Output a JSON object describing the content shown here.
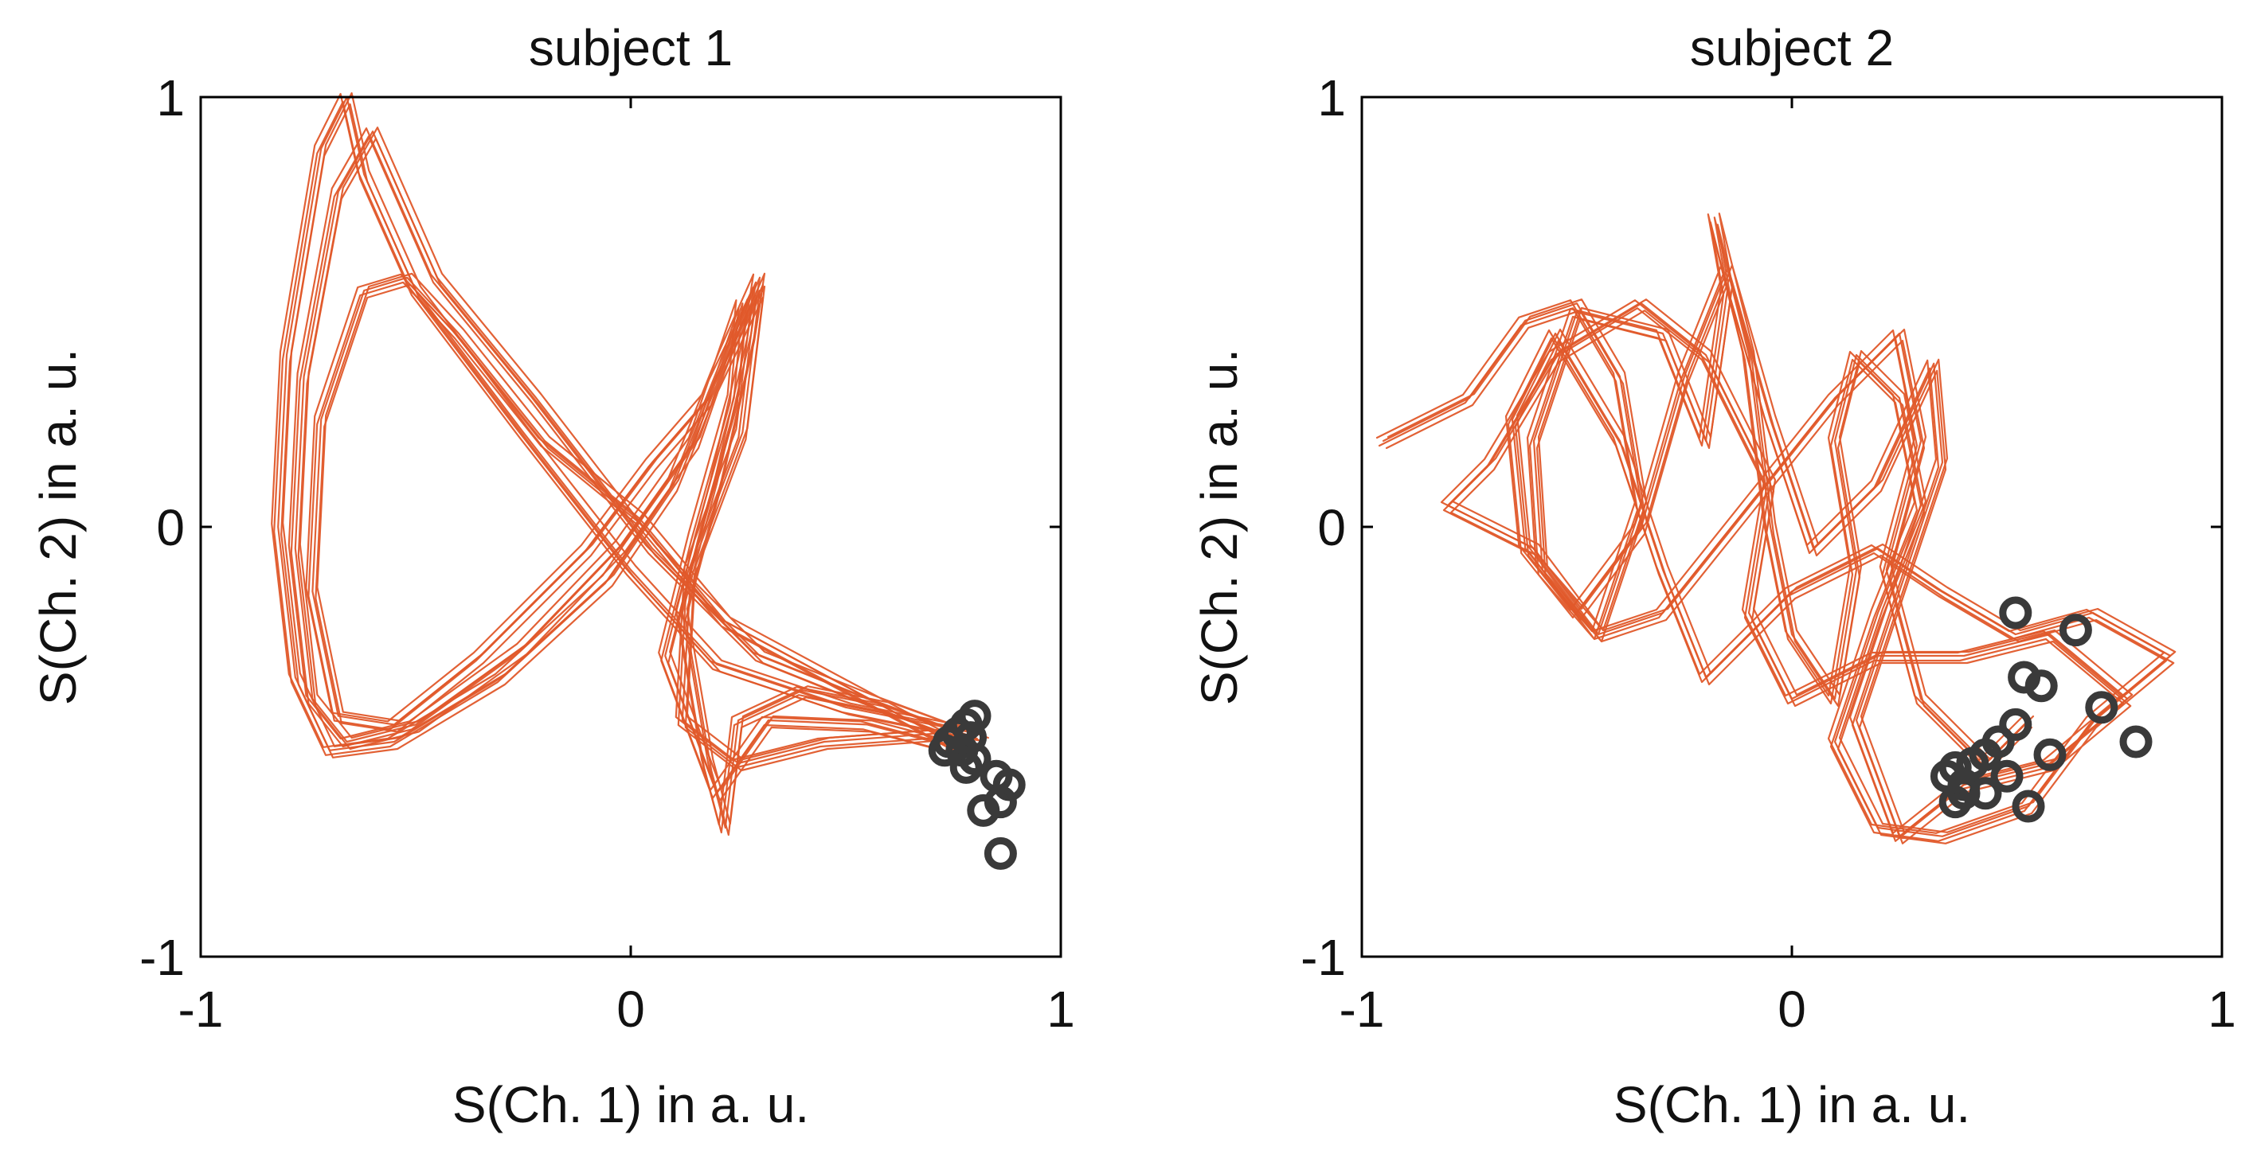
{
  "colors": {
    "trace": "#e0582a",
    "marker": "#3a3a3a",
    "axis": "#000000"
  },
  "chart_data": [
    {
      "type": "line",
      "title": "subject 1",
      "xlabel": "S(Ch. 1) in a. u.",
      "ylabel": "S(Ch. 2) in a. u.",
      "xlim": [
        -1,
        1
      ],
      "ylim": [
        -1,
        1
      ],
      "xticks": [
        "-1",
        "0",
        "1"
      ],
      "yticks": [
        "-1",
        "0",
        "1"
      ],
      "grid": false,
      "series": [
        {
          "style": "line",
          "points": [
            [
              0.8,
              -0.48
            ],
            [
              0.5,
              -0.42
            ],
            [
              0.2,
              -0.32
            ],
            [
              0.0,
              -0.1
            ],
            [
              -0.25,
              0.22
            ],
            [
              -0.5,
              0.55
            ],
            [
              -0.62,
              0.82
            ],
            [
              -0.66,
              1.0
            ],
            [
              -0.72,
              0.88
            ],
            [
              -0.8,
              0.4
            ],
            [
              -0.82,
              0.0
            ],
            [
              -0.78,
              -0.35
            ],
            [
              -0.7,
              -0.52
            ],
            [
              -0.55,
              -0.5
            ],
            [
              -0.3,
              -0.35
            ],
            [
              -0.05,
              -0.12
            ],
            [
              0.1,
              0.1
            ],
            [
              0.22,
              0.4
            ],
            [
              0.3,
              0.58
            ],
            [
              0.28,
              0.45
            ],
            [
              0.2,
              0.1
            ],
            [
              0.12,
              -0.2
            ],
            [
              0.18,
              -0.55
            ],
            [
              0.22,
              -0.7
            ],
            [
              0.25,
              -0.45
            ],
            [
              0.4,
              -0.38
            ],
            [
              0.6,
              -0.42
            ],
            [
              0.82,
              -0.5
            ],
            [
              0.55,
              -0.4
            ],
            [
              0.3,
              -0.3
            ],
            [
              0.05,
              -0.05
            ],
            [
              -0.22,
              0.3
            ],
            [
              -0.45,
              0.58
            ],
            [
              -0.6,
              0.92
            ],
            [
              -0.68,
              0.78
            ],
            [
              -0.76,
              0.35
            ],
            [
              -0.78,
              -0.05
            ],
            [
              -0.74,
              -0.4
            ],
            [
              -0.66,
              -0.5
            ],
            [
              -0.5,
              -0.46
            ],
            [
              -0.25,
              -0.28
            ],
            [
              -0.02,
              -0.04
            ],
            [
              0.15,
              0.2
            ],
            [
              0.26,
              0.52
            ],
            [
              0.24,
              0.3
            ],
            [
              0.15,
              -0.02
            ],
            [
              0.08,
              -0.3
            ],
            [
              0.2,
              -0.62
            ],
            [
              0.32,
              -0.45
            ],
            [
              0.55,
              -0.46
            ],
            [
              0.78,
              -0.52
            ],
            [
              0.48,
              -0.36
            ],
            [
              0.22,
              -0.22
            ],
            [
              0.02,
              0.02
            ],
            [
              -0.2,
              0.2
            ],
            [
              -0.4,
              0.45
            ],
            [
              -0.52,
              0.58
            ],
            [
              -0.62,
              0.55
            ],
            [
              -0.72,
              0.25
            ],
            [
              -0.74,
              -0.15
            ],
            [
              -0.68,
              -0.44
            ],
            [
              -0.55,
              -0.46
            ],
            [
              -0.35,
              -0.3
            ],
            [
              -0.1,
              -0.05
            ],
            [
              0.05,
              0.15
            ],
            [
              0.18,
              0.3
            ],
            [
              0.3,
              0.55
            ],
            [
              0.26,
              0.22
            ],
            [
              0.14,
              -0.1
            ],
            [
              0.12,
              -0.45
            ],
            [
              0.25,
              -0.55
            ],
            [
              0.45,
              -0.5
            ],
            [
              0.72,
              -0.48
            ]
          ]
        },
        {
          "style": "markers",
          "points": [
            [
              0.74,
              -0.5
            ],
            [
              0.76,
              -0.48
            ],
            [
              0.78,
              -0.46
            ],
            [
              0.8,
              -0.44
            ],
            [
              0.77,
              -0.52
            ],
            [
              0.8,
              -0.54
            ],
            [
              0.73,
              -0.52
            ],
            [
              0.78,
              -0.56
            ],
            [
              0.85,
              -0.58
            ],
            [
              0.88,
              -0.6
            ],
            [
              0.82,
              -0.66
            ],
            [
              0.86,
              -0.64
            ],
            [
              0.86,
              -0.76
            ],
            [
              0.79,
              -0.49
            ]
          ]
        }
      ]
    },
    {
      "type": "line",
      "title": "subject 2",
      "xlabel": "S(Ch. 1) in a. u.",
      "ylabel": "S(Ch. 2) in a. u.",
      "xlim": [
        -1,
        1
      ],
      "ylim": [
        -1,
        1
      ],
      "xticks": [
        "-1",
        "0",
        "1"
      ],
      "yticks": [
        "-1",
        "0",
        "1"
      ],
      "grid": false,
      "series": [
        {
          "style": "line",
          "points": [
            [
              -0.95,
              0.2
            ],
            [
              -0.75,
              0.3
            ],
            [
              -0.62,
              0.48
            ],
            [
              -0.5,
              0.52
            ],
            [
              -0.4,
              0.35
            ],
            [
              -0.35,
              0.05
            ],
            [
              -0.45,
              -0.25
            ],
            [
              -0.58,
              -0.1
            ],
            [
              -0.6,
              0.2
            ],
            [
              -0.5,
              0.5
            ],
            [
              -0.3,
              0.45
            ],
            [
              -0.2,
              0.2
            ],
            [
              -0.15,
              0.55
            ],
            [
              -0.18,
              0.72
            ],
            [
              -0.1,
              0.4
            ],
            [
              -0.05,
              0.0
            ],
            [
              0.0,
              -0.25
            ],
            [
              0.1,
              -0.4
            ],
            [
              0.15,
              -0.1
            ],
            [
              0.1,
              0.2
            ],
            [
              0.15,
              0.4
            ],
            [
              0.25,
              0.3
            ],
            [
              0.3,
              0.05
            ],
            [
              0.2,
              -0.2
            ],
            [
              0.1,
              -0.5
            ],
            [
              0.2,
              -0.7
            ],
            [
              0.35,
              -0.72
            ],
            [
              0.55,
              -0.65
            ],
            [
              0.7,
              -0.45
            ],
            [
              0.88,
              -0.3
            ],
            [
              0.7,
              -0.2
            ],
            [
              0.52,
              -0.25
            ],
            [
              0.35,
              -0.15
            ],
            [
              0.2,
              -0.05
            ],
            [
              0.0,
              -0.15
            ],
            [
              -0.2,
              -0.35
            ],
            [
              -0.3,
              -0.1
            ],
            [
              -0.4,
              0.2
            ],
            [
              -0.55,
              0.45
            ],
            [
              -0.65,
              0.25
            ],
            [
              -0.62,
              -0.05
            ],
            [
              -0.5,
              -0.2
            ],
            [
              -0.35,
              0.0
            ],
            [
              -0.25,
              0.35
            ],
            [
              -0.15,
              0.6
            ],
            [
              -0.05,
              0.25
            ],
            [
              0.05,
              -0.05
            ],
            [
              0.2,
              0.1
            ],
            [
              0.33,
              0.38
            ],
            [
              0.35,
              0.15
            ],
            [
              0.25,
              -0.15
            ],
            [
              0.15,
              -0.45
            ],
            [
              0.25,
              -0.72
            ],
            [
              0.4,
              -0.6
            ],
            [
              0.6,
              -0.55
            ],
            [
              0.78,
              -0.4
            ],
            [
              0.6,
              -0.25
            ],
            [
              0.4,
              -0.3
            ],
            [
              0.2,
              -0.3
            ],
            [
              0.0,
              -0.4
            ],
            [
              -0.1,
              -0.2
            ],
            [
              -0.05,
              0.1
            ],
            [
              -0.2,
              0.4
            ],
            [
              -0.35,
              0.52
            ],
            [
              -0.55,
              0.4
            ],
            [
              -0.7,
              0.15
            ],
            [
              -0.8,
              0.05
            ],
            [
              -0.6,
              -0.05
            ],
            [
              -0.45,
              -0.25
            ],
            [
              -0.3,
              -0.2
            ],
            [
              -0.1,
              0.05
            ],
            [
              0.1,
              0.3
            ],
            [
              0.25,
              0.45
            ],
            [
              0.3,
              0.2
            ],
            [
              0.22,
              -0.1
            ],
            [
              0.3,
              -0.4
            ],
            [
              0.45,
              -0.55
            ],
            [
              0.55,
              -0.45
            ]
          ]
        },
        {
          "style": "markers",
          "points": [
            [
              0.52,
              -0.2
            ],
            [
              0.66,
              -0.24
            ],
            [
              0.54,
              -0.35
            ],
            [
              0.58,
              -0.37
            ],
            [
              0.72,
              -0.42
            ],
            [
              0.8,
              -0.5
            ],
            [
              0.52,
              -0.46
            ],
            [
              0.48,
              -0.5
            ],
            [
              0.6,
              -0.53
            ],
            [
              0.45,
              -0.53
            ],
            [
              0.42,
              -0.55
            ],
            [
              0.5,
              -0.58
            ],
            [
              0.38,
              -0.56
            ],
            [
              0.4,
              -0.6
            ],
            [
              0.36,
              -0.58
            ],
            [
              0.4,
              -0.62
            ],
            [
              0.45,
              -0.62
            ],
            [
              0.55,
              -0.65
            ],
            [
              0.38,
              -0.64
            ]
          ]
        }
      ]
    }
  ]
}
